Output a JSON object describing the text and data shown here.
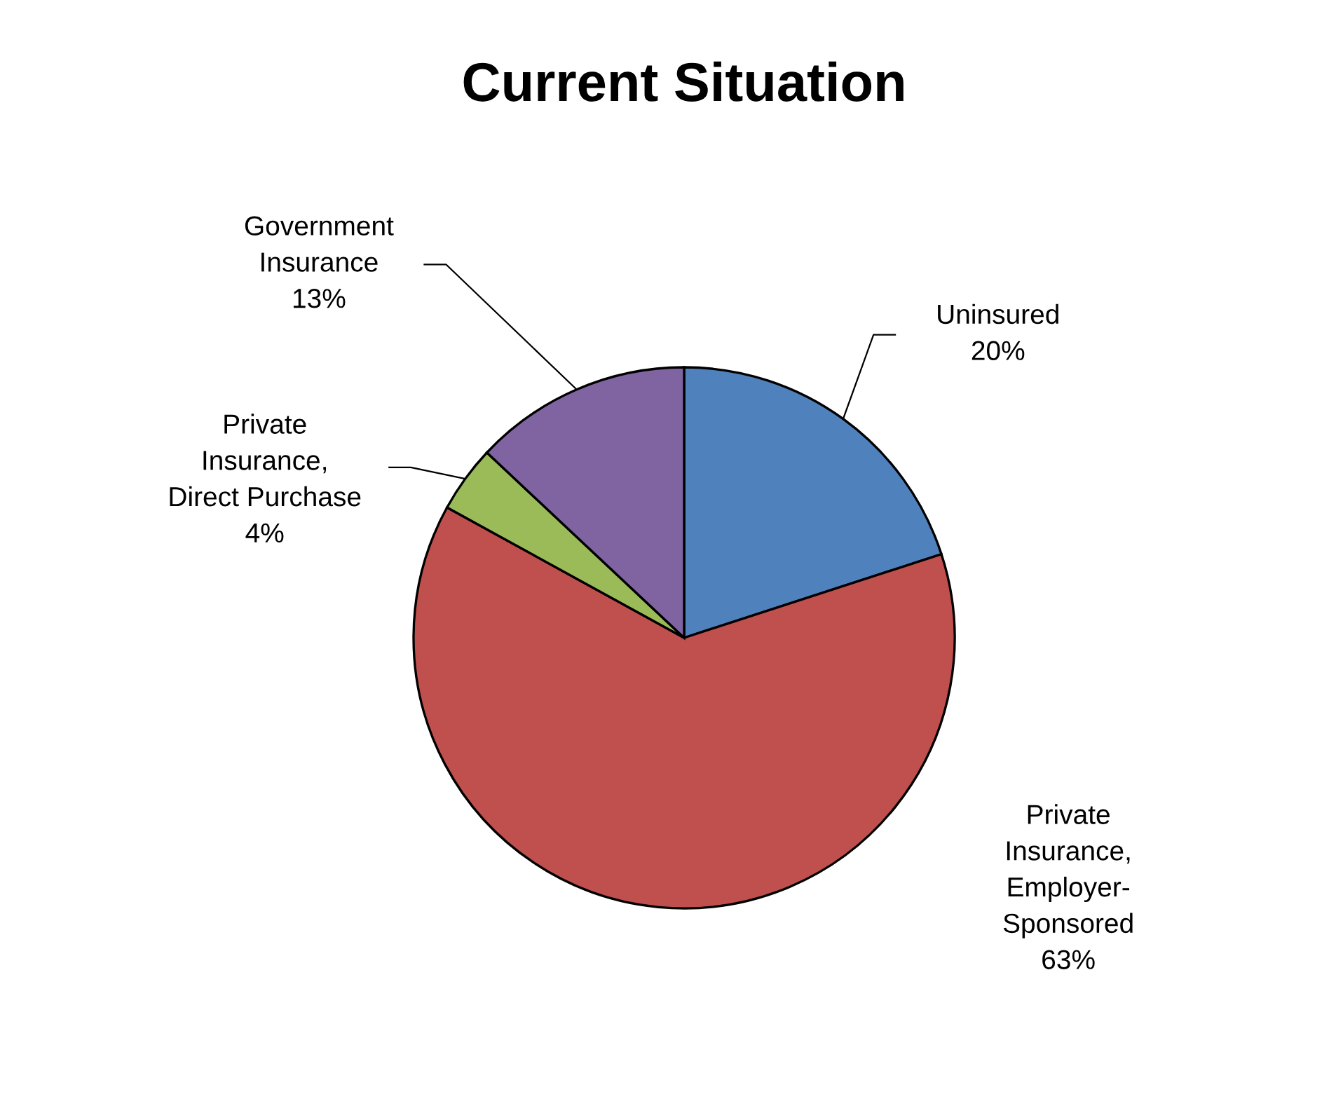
{
  "chart_data": {
    "type": "pie",
    "title": "Current Situation",
    "categories": [
      "Uninsured",
      "Private\nInsurance,\nEmployer-\nSponsored",
      "Private\nInsurance,\nDirect Purchase",
      "Government\nInsurance"
    ],
    "values": [
      20,
      63,
      4,
      13
    ],
    "value_labels": [
      "20%",
      "63%",
      "4%",
      "13%"
    ],
    "colors": [
      "#4f81bd",
      "#c0504d",
      "#9bbb59",
      "#8064a2"
    ],
    "legend": false
  }
}
